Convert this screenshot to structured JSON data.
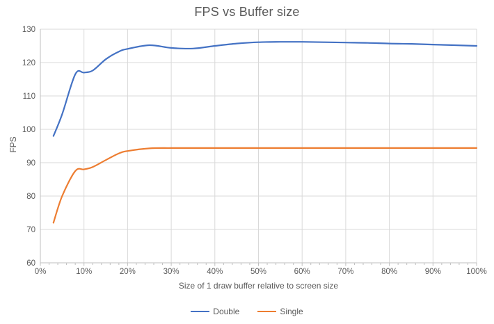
{
  "chart_data": {
    "type": "line",
    "title": "FPS vs Buffer size",
    "xlabel": "Size of 1 draw buffer relative to screen size",
    "ylabel": "FPS",
    "xlim": [
      0,
      100
    ],
    "ylim": [
      60,
      130
    ],
    "x_major_tick_step": 10,
    "x_minor_tick_step": 2,
    "y_tick_step": 10,
    "x_tick_labels": [
      "0%",
      "10%",
      "20%",
      "30%",
      "40%",
      "50%",
      "60%",
      "70%",
      "80%",
      "90%",
      "100%"
    ],
    "y_tick_labels": [
      "60",
      "70",
      "80",
      "90",
      "100",
      "110",
      "120",
      "130"
    ],
    "grid": true,
    "line_style": "smooth",
    "legend_position": "bottom-center",
    "x": [
      3,
      5,
      8,
      10,
      12,
      15,
      18,
      20,
      25,
      30,
      35,
      40,
      45,
      50,
      55,
      60,
      65,
      70,
      75,
      80,
      85,
      90,
      95,
      100
    ],
    "series": [
      {
        "name": "Double",
        "color": "#4472C4",
        "values": [
          98,
          104.5,
          116.5,
          117,
          117.6,
          121,
          123.3,
          124.1,
          125.2,
          124.4,
          124.2,
          125,
          125.7,
          126.1,
          126.2,
          126.2,
          126.1,
          126,
          125.9,
          125.7,
          125.6,
          125.4,
          125.2,
          125
        ]
      },
      {
        "name": "Single",
        "color": "#ED7D31",
        "values": [
          72,
          80,
          87.5,
          88,
          88.7,
          90.8,
          92.8,
          93.5,
          94.3,
          94.4,
          94.4,
          94.4,
          94.4,
          94.4,
          94.4,
          94.4,
          94.4,
          94.4,
          94.4,
          94.4,
          94.4,
          94.4,
          94.4,
          94.4
        ]
      }
    ]
  },
  "colors": {
    "title_text": "#595959",
    "axis_text": "#595959",
    "gridline": "#D9D9D9",
    "axis_line": "#BFBFBF",
    "series_double": "#4472C4",
    "series_single": "#ED7D31",
    "background": "#FFFFFF"
  }
}
